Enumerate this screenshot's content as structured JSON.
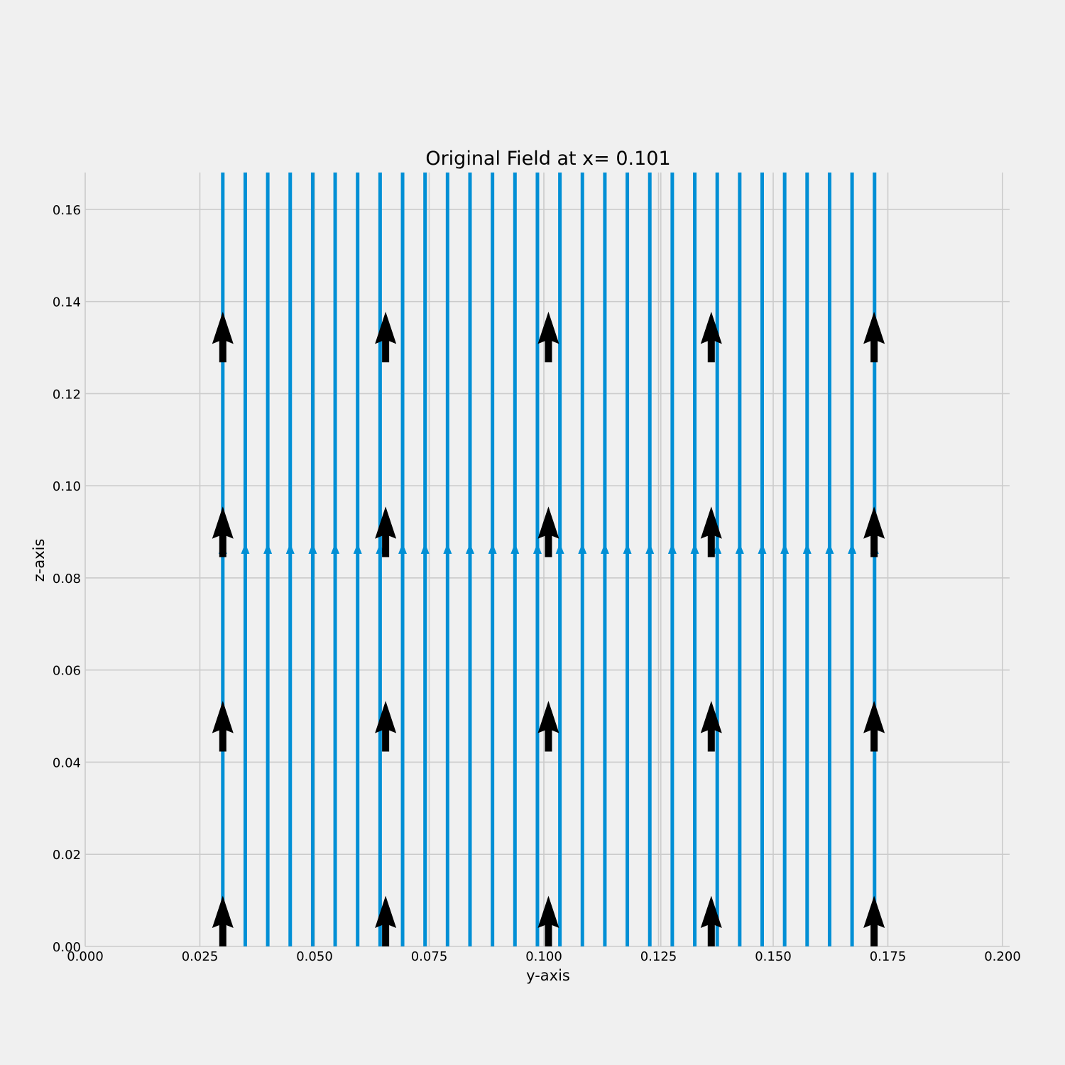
{
  "chart_data": {
    "type": "quiver_streamplot",
    "title": "Original Field at x= 0.101",
    "xlabel": "y-axis",
    "ylabel": "z-axis",
    "xlim": [
      0.0,
      0.2
    ],
    "ylim": [
      0.0,
      0.168
    ],
    "grid": true,
    "xticks": [
      0.0,
      0.025,
      0.05,
      0.075,
      0.1,
      0.125,
      0.15,
      0.175,
      0.2
    ],
    "xtick_labels": [
      "0.000",
      "0.025",
      "0.050",
      "0.075",
      "0.100",
      "0.125",
      "0.150",
      "0.175",
      "0.200"
    ],
    "yticks": [
      0.0,
      0.02,
      0.04,
      0.06,
      0.08,
      0.1,
      0.12,
      0.14,
      0.16
    ],
    "ytick_labels": [
      "0.00",
      "0.02",
      "0.04",
      "0.06",
      "0.08",
      "0.10",
      "0.12",
      "0.14",
      "0.16"
    ],
    "extra_vlines": [
      0.1255
    ],
    "streamlines": {
      "direction": "+z",
      "color": "#008fd5",
      "z_range": [
        0.0,
        0.168
      ],
      "arrow_z": 0.086,
      "y_positions": [
        0.03,
        0.0349,
        0.0398,
        0.0447,
        0.0496,
        0.0545,
        0.0594,
        0.0643,
        0.0692,
        0.0741,
        0.079,
        0.0839,
        0.0888,
        0.0937,
        0.0986,
        0.1035,
        0.1084,
        0.1133,
        0.1182,
        0.1231,
        0.128,
        0.1329,
        0.1378,
        0.1427,
        0.1476,
        0.1525,
        0.1574,
        0.1623,
        0.1672,
        0.1721
      ]
    },
    "quiver": {
      "color": "#000000",
      "direction": "+z",
      "arrow_length": 0.011,
      "y_positions": [
        0.03,
        0.0655,
        0.101,
        0.1365,
        0.172
      ],
      "z_positions": [
        0.0,
        0.0423,
        0.0845,
        0.1268
      ]
    }
  }
}
